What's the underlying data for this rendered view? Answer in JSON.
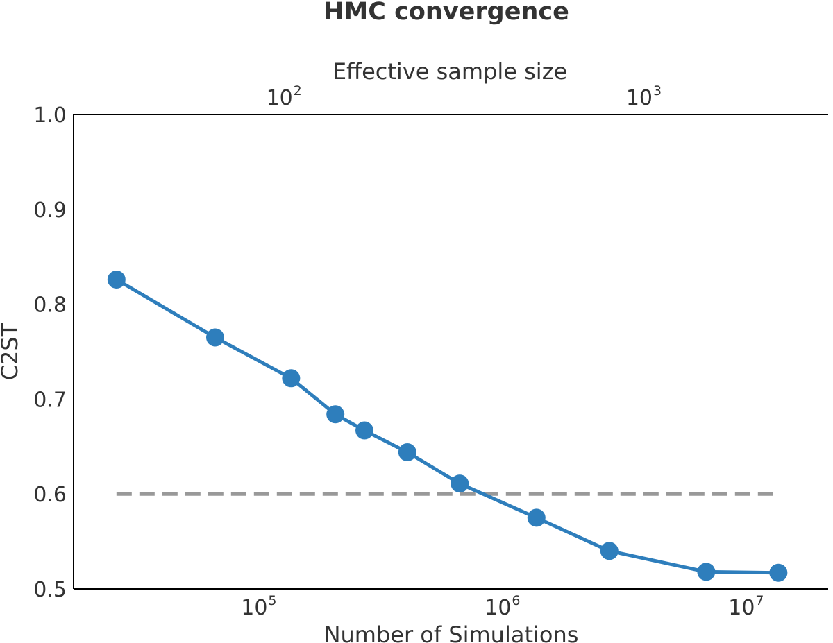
{
  "chart_data": {
    "type": "line",
    "title": "HMC convergence",
    "xlabel": "Number of Simulations",
    "ylabel": "C2ST",
    "x2label": "Effective sample size",
    "x_scale": "log",
    "x2_scale": "log",
    "xlim": [
      16000,
      20000000
    ],
    "ylim": [
      0.5,
      1.0
    ],
    "x2lim": [
      24.6,
      3078
    ],
    "xticks": [
      {
        "value": 100000,
        "base": "10",
        "exp": "5"
      },
      {
        "value": 1000000,
        "base": "10",
        "exp": "6"
      },
      {
        "value": 10000000,
        "base": "10",
        "exp": "7"
      }
    ],
    "x2ticks": [
      {
        "value": 100,
        "base": "10",
        "exp": "2"
      },
      {
        "value": 1000,
        "base": "10",
        "exp": "3"
      }
    ],
    "yticks": [
      "0.5",
      "0.6",
      "0.7",
      "0.8",
      "0.9",
      "1.0"
    ],
    "series": [
      {
        "color": "#2e7ebc",
        "x": [
          24000,
          61000,
          125000,
          190000,
          250000,
          375000,
          615000,
          1270000,
          2530000,
          6320000,
          12500000
        ],
        "y": [
          0.826,
          0.765,
          0.722,
          0.684,
          0.667,
          0.644,
          0.611,
          0.575,
          0.54,
          0.518,
          0.517
        ]
      }
    ],
    "reference_line": {
      "y": 0.6,
      "x_from": 24000,
      "x_to": 12500000,
      "color": "#999999",
      "style": "dashed"
    },
    "grid": false
  }
}
